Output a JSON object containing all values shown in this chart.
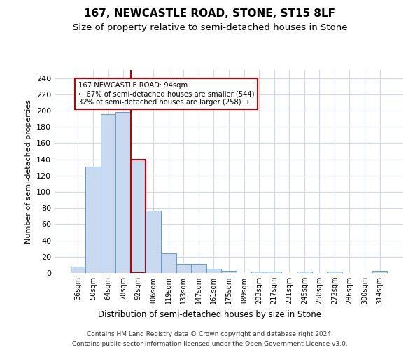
{
  "title": "167, NEWCASTLE ROAD, STONE, ST15 8LF",
  "subtitle": "Size of property relative to semi-detached houses in Stone",
  "xlabel": "Distribution of semi-detached houses by size in Stone",
  "ylabel": "Number of semi-detached properties",
  "categories": [
    "36sqm",
    "50sqm",
    "64sqm",
    "78sqm",
    "92sqm",
    "106sqm",
    "119sqm",
    "133sqm",
    "147sqm",
    "161sqm",
    "175sqm",
    "189sqm",
    "203sqm",
    "217sqm",
    "231sqm",
    "245sqm",
    "258sqm",
    "272sqm",
    "286sqm",
    "300sqm",
    "314sqm"
  ],
  "values": [
    8,
    131,
    196,
    198,
    140,
    77,
    24,
    11,
    11,
    5,
    3,
    0,
    2,
    2,
    0,
    2,
    0,
    2,
    0,
    0,
    3
  ],
  "bar_color": "#c9d9f0",
  "bar_edgecolor": "#5b9bd5",
  "highlight_bar_index": 4,
  "highlight_edgecolor": "#c00000",
  "annotation_text": "167 NEWCASTLE ROAD: 94sqm\n← 67% of semi-detached houses are smaller (544)\n32% of semi-detached houses are larger (258) →",
  "annotation_box_color": "#ffffff",
  "annotation_box_edgecolor": "#c00000",
  "ylim": [
    0,
    250
  ],
  "yticks": [
    0,
    20,
    40,
    60,
    80,
    100,
    120,
    140,
    160,
    180,
    200,
    220,
    240
  ],
  "footer1": "Contains HM Land Registry data © Crown copyright and database right 2024.",
  "footer2": "Contains public sector information licensed under the Open Government Licence v3.0.",
  "title_fontsize": 11,
  "subtitle_fontsize": 9.5,
  "background_color": "#ffffff",
  "grid_color": "#d0d8e8"
}
